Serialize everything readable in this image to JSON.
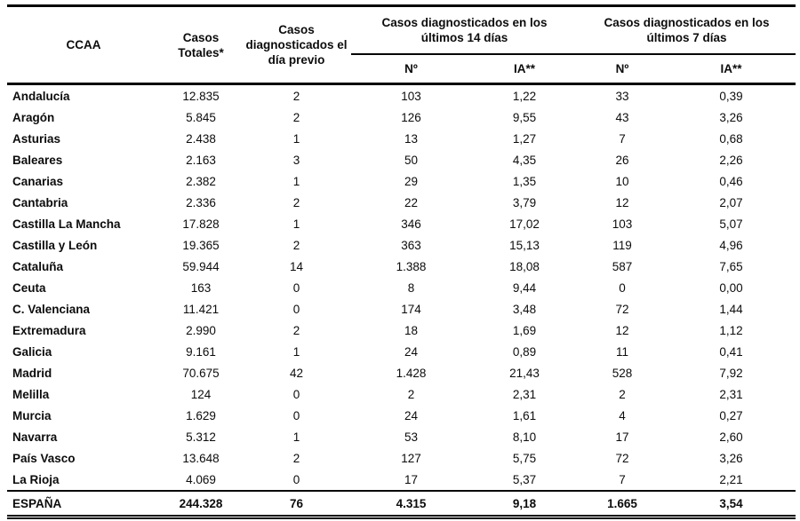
{
  "table": {
    "header": {
      "col_ccaa": "CCAA",
      "col_totales": "Casos Totales*",
      "col_previo": "Casos diagnosticados el día previo",
      "group_14": "Casos diagnosticados en los últimos 14 días",
      "group_7": "Casos diagnosticados en los últimos 7 días",
      "sub_n_14": "Nº",
      "sub_ia_14": "IA**",
      "sub_n_7": "Nº",
      "sub_ia_7": "IA**"
    },
    "rows": [
      {
        "ccaa": "Andalucía",
        "totales": "12.835",
        "previo": "2",
        "n14": "103",
        "ia14": "1,22",
        "n7": "33",
        "ia7": "0,39"
      },
      {
        "ccaa": "Aragón",
        "totales": "5.845",
        "previo": "2",
        "n14": "126",
        "ia14": "9,55",
        "n7": "43",
        "ia7": "3,26"
      },
      {
        "ccaa": "Asturias",
        "totales": "2.438",
        "previo": "1",
        "n14": "13",
        "ia14": "1,27",
        "n7": "7",
        "ia7": "0,68"
      },
      {
        "ccaa": "Baleares",
        "totales": "2.163",
        "previo": "3",
        "n14": "50",
        "ia14": "4,35",
        "n7": "26",
        "ia7": "2,26"
      },
      {
        "ccaa": "Canarias",
        "totales": "2.382",
        "previo": "1",
        "n14": "29",
        "ia14": "1,35",
        "n7": "10",
        "ia7": "0,46"
      },
      {
        "ccaa": "Cantabria",
        "totales": "2.336",
        "previo": "2",
        "n14": "22",
        "ia14": "3,79",
        "n7": "12",
        "ia7": "2,07"
      },
      {
        "ccaa": "Castilla La Mancha",
        "totales": "17.828",
        "previo": "1",
        "n14": "346",
        "ia14": "17,02",
        "n7": "103",
        "ia7": "5,07"
      },
      {
        "ccaa": "Castilla y León",
        "totales": "19.365",
        "previo": "2",
        "n14": "363",
        "ia14": "15,13",
        "n7": "119",
        "ia7": "4,96"
      },
      {
        "ccaa": "Cataluña",
        "totales": "59.944",
        "previo": "14",
        "n14": "1.388",
        "ia14": "18,08",
        "n7": "587",
        "ia7": "7,65"
      },
      {
        "ccaa": "Ceuta",
        "totales": "163",
        "previo": "0",
        "n14": "8",
        "ia14": "9,44",
        "n7": "0",
        "ia7": "0,00"
      },
      {
        "ccaa": "C. Valenciana",
        "totales": "11.421",
        "previo": "0",
        "n14": "174",
        "ia14": "3,48",
        "n7": "72",
        "ia7": "1,44"
      },
      {
        "ccaa": "Extremadura",
        "totales": "2.990",
        "previo": "2",
        "n14": "18",
        "ia14": "1,69",
        "n7": "12",
        "ia7": "1,12"
      },
      {
        "ccaa": "Galicia",
        "totales": "9.161",
        "previo": "1",
        "n14": "24",
        "ia14": "0,89",
        "n7": "11",
        "ia7": "0,41"
      },
      {
        "ccaa": "Madrid",
        "totales": "70.675",
        "previo": "42",
        "n14": "1.428",
        "ia14": "21,43",
        "n7": "528",
        "ia7": "7,92"
      },
      {
        "ccaa": "Melilla",
        "totales": "124",
        "previo": "0",
        "n14": "2",
        "ia14": "2,31",
        "n7": "2",
        "ia7": "2,31"
      },
      {
        "ccaa": "Murcia",
        "totales": "1.629",
        "previo": "0",
        "n14": "24",
        "ia14": "1,61",
        "n7": "4",
        "ia7": "0,27"
      },
      {
        "ccaa": "Navarra",
        "totales": "5.312",
        "previo": "1",
        "n14": "53",
        "ia14": "8,10",
        "n7": "17",
        "ia7": "2,60"
      },
      {
        "ccaa": "País Vasco",
        "totales": "13.648",
        "previo": "2",
        "n14": "127",
        "ia14": "5,75",
        "n7": "72",
        "ia7": "3,26"
      },
      {
        "ccaa": "La Rioja",
        "totales": "4.069",
        "previo": "0",
        "n14": "17",
        "ia14": "5,37",
        "n7": "7",
        "ia7": "2,21"
      }
    ],
    "total": {
      "ccaa": "ESPAÑA",
      "totales": "244.328",
      "previo": "76",
      "n14": "4.315",
      "ia14": "9,18",
      "n7": "1.665",
      "ia7": "3,54"
    }
  }
}
